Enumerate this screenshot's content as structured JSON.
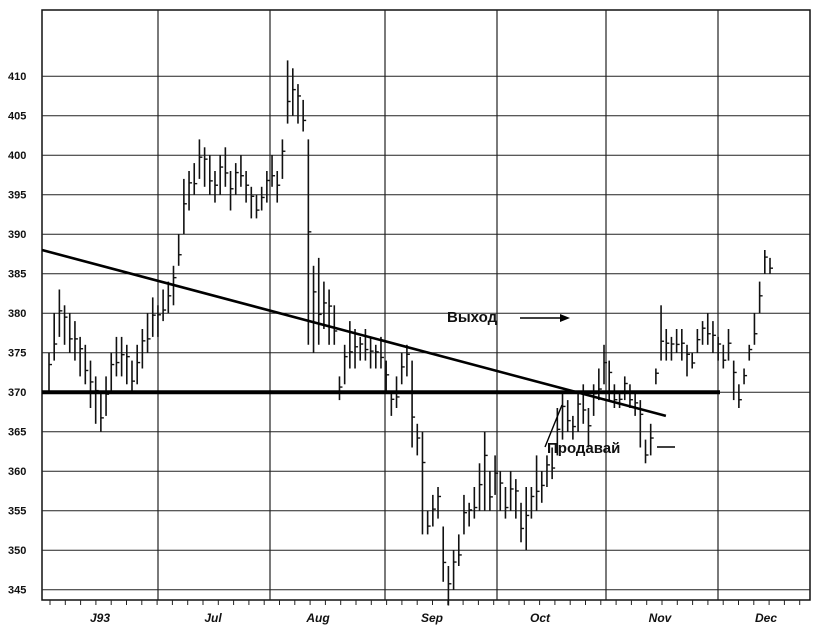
{
  "chart_data": {
    "type": "bar",
    "subtype": "ohlc-price-bars",
    "title": "",
    "xlabel": "",
    "ylabel": "",
    "ylim": [
      341,
      414
    ],
    "y_ticks": [
      345,
      350,
      355,
      360,
      365,
      370,
      375,
      380,
      385,
      390,
      395,
      400,
      405,
      410
    ],
    "y_tick_labels": [
      "345",
      "350",
      "355",
      "360",
      "365",
      "370",
      "375",
      "380",
      "385",
      "390",
      "395",
      "400",
      "405",
      "410"
    ],
    "x_months": [
      "J93",
      "Jul",
      "Aug",
      "Sep",
      "Oct",
      "Nov",
      "Dec"
    ],
    "grid": true,
    "bar_count": 140,
    "price_bars": [
      {
        "high": 375,
        "low": 370
      },
      {
        "high": 380,
        "low": 374
      },
      {
        "high": 383,
        "low": 377
      },
      {
        "high": 381,
        "low": 376
      },
      {
        "high": 380,
        "low": 375
      },
      {
        "high": 379,
        "low": 374
      },
      {
        "high": 377,
        "low": 372
      },
      {
        "high": 376,
        "low": 371
      },
      {
        "high": 374,
        "low": 368
      },
      {
        "high": 372,
        "low": 366
      },
      {
        "high": 370,
        "low": 365
      },
      {
        "high": 372,
        "low": 367
      },
      {
        "high": 375,
        "low": 370
      },
      {
        "high": 377,
        "low": 372
      },
      {
        "high": 377,
        "low": 372
      },
      {
        "high": 376,
        "low": 371
      },
      {
        "high": 374,
        "low": 370
      },
      {
        "high": 376,
        "low": 371
      },
      {
        "high": 378,
        "low": 373
      },
      {
        "high": 380,
        "low": 375
      },
      {
        "high": 382,
        "low": 377
      },
      {
        "high": 381,
        "low": 377
      },
      {
        "high": 383,
        "low": 379
      },
      {
        "high": 384,
        "low": 380
      },
      {
        "high": 386,
        "low": 381
      },
      {
        "high": 390,
        "low": 386
      },
      {
        "high": 397,
        "low": 390
      },
      {
        "high": 398,
        "low": 393
      },
      {
        "high": 399,
        "low": 395
      },
      {
        "high": 402,
        "low": 397
      },
      {
        "high": 401,
        "low": 396
      },
      {
        "high": 400,
        "low": 395
      },
      {
        "high": 398,
        "low": 394
      },
      {
        "high": 400,
        "low": 395
      },
      {
        "high": 401,
        "low": 396
      },
      {
        "high": 398,
        "low": 393
      },
      {
        "high": 399,
        "low": 395
      },
      {
        "high": 400,
        "low": 396
      },
      {
        "high": 398,
        "low": 394
      },
      {
        "high": 396,
        "low": 392
      },
      {
        "high": 395,
        "low": 392
      },
      {
        "high": 396,
        "low": 393
      },
      {
        "high": 398,
        "low": 394
      },
      {
        "high": 400,
        "low": 396
      },
      {
        "high": 398,
        "low": 394
      },
      {
        "high": 402,
        "low": 397
      },
      {
        "high": 412,
        "low": 404
      },
      {
        "high": 411,
        "low": 405
      },
      {
        "high": 409,
        "low": 404
      },
      {
        "high": 407,
        "low": 403
      },
      {
        "high": 402,
        "low": 376
      },
      {
        "high": 386,
        "low": 375
      },
      {
        "high": 387,
        "low": 376
      },
      {
        "high": 384,
        "low": 378
      },
      {
        "high": 383,
        "low": 376
      },
      {
        "high": 381,
        "low": 376
      },
      {
        "high": 372,
        "low": 369
      },
      {
        "high": 376,
        "low": 371
      },
      {
        "high": 379,
        "low": 373
      },
      {
        "high": 378,
        "low": 373
      },
      {
        "high": 377,
        "low": 374
      },
      {
        "high": 378,
        "low": 374
      },
      {
        "high": 377,
        "low": 373
      },
      {
        "high": 376,
        "low": 373
      },
      {
        "high": 377,
        "low": 373
      },
      {
        "high": 374,
        "low": 370
      },
      {
        "high": 370,
        "low": 367
      },
      {
        "high": 372,
        "low": 368
      },
      {
        "high": 375,
        "low": 371
      },
      {
        "high": 376,
        "low": 372
      },
      {
        "high": 374,
        "low": 363
      },
      {
        "high": 366,
        "low": 362
      },
      {
        "high": 365,
        "low": 352
      },
      {
        "high": 355,
        "low": 352
      },
      {
        "high": 357,
        "low": 353
      },
      {
        "high": 358,
        "low": 354
      },
      {
        "high": 353,
        "low": 346
      },
      {
        "high": 348,
        "low": 343
      },
      {
        "high": 350,
        "low": 345
      },
      {
        "high": 352,
        "low": 348
      },
      {
        "high": 357,
        "low": 352
      },
      {
        "high": 356,
        "low": 353
      },
      {
        "high": 358,
        "low": 354
      },
      {
        "high": 361,
        "low": 355
      },
      {
        "high": 365,
        "low": 355
      },
      {
        "high": 360,
        "low": 355
      },
      {
        "high": 362,
        "low": 357
      },
      {
        "high": 360,
        "low": 355
      },
      {
        "high": 358,
        "low": 354
      },
      {
        "high": 360,
        "low": 355
      },
      {
        "high": 359,
        "low": 354
      },
      {
        "high": 356,
        "low": 351
      },
      {
        "high": 358,
        "low": 350
      },
      {
        "high": 358,
        "low": 354
      },
      {
        "high": 362,
        "low": 355
      },
      {
        "high": 360,
        "low": 356
      },
      {
        "high": 362,
        "low": 358
      },
      {
        "high": 363,
        "low": 359
      },
      {
        "high": 368,
        "low": 362
      },
      {
        "high": 370,
        "low": 364
      },
      {
        "high": 369,
        "low": 365
      },
      {
        "high": 367,
        "low": 364
      },
      {
        "high": 370,
        "low": 365
      },
      {
        "high": 371,
        "low": 366
      },
      {
        "high": 368,
        "low": 363
      },
      {
        "high": 371,
        "low": 367
      },
      {
        "high": 373,
        "low": 369
      },
      {
        "high": 376,
        "low": 371
      },
      {
        "high": 374,
        "low": 369
      },
      {
        "high": 371,
        "low": 368
      },
      {
        "high": 370,
        "low": 368
      },
      {
        "high": 372,
        "low": 369
      },
      {
        "high": 371,
        "low": 368
      },
      {
        "high": 370,
        "low": 367
      },
      {
        "high": 369,
        "low": 363
      },
      {
        "high": 364,
        "low": 361
      },
      {
        "high": 366,
        "low": 362
      },
      {
        "high": 373,
        "low": 371
      },
      {
        "high": 381,
        "low": 374
      },
      {
        "high": 378,
        "low": 374
      },
      {
        "high": 377,
        "low": 374
      },
      {
        "high": 378,
        "low": 375
      },
      {
        "high": 378,
        "low": 374
      },
      {
        "high": 376,
        "low": 372
      },
      {
        "high": 375,
        "low": 373
      },
      {
        "high": 378,
        "low": 375
      },
      {
        "high": 379,
        "low": 376
      },
      {
        "high": 380,
        "low": 376
      },
      {
        "high": 379,
        "low": 375
      },
      {
        "high": 377,
        "low": 374
      },
      {
        "high": 376,
        "low": 373
      },
      {
        "high": 378,
        "low": 374
      },
      {
        "high": 374,
        "low": 369
      },
      {
        "high": 371,
        "low": 368
      },
      {
        "high": 373,
        "low": 371
      },
      {
        "high": 376,
        "low": 374
      },
      {
        "high": 380,
        "low": 376
      },
      {
        "high": 384,
        "low": 380
      },
      {
        "high": 388,
        "low": 385
      },
      {
        "high": 387,
        "low": 385
      }
    ],
    "lines": {
      "horizontal_support": {
        "y": 370
      },
      "trendline": {
        "start_bar": 0,
        "start_y": 388,
        "end_bar": 117,
        "end_y": 367
      }
    },
    "annotations": [
      {
        "text": "Выход",
        "points_to_bar": 103,
        "y": 376
      },
      {
        "text": "Продавай",
        "points_to_bar": 100,
        "y": 366
      }
    ]
  }
}
